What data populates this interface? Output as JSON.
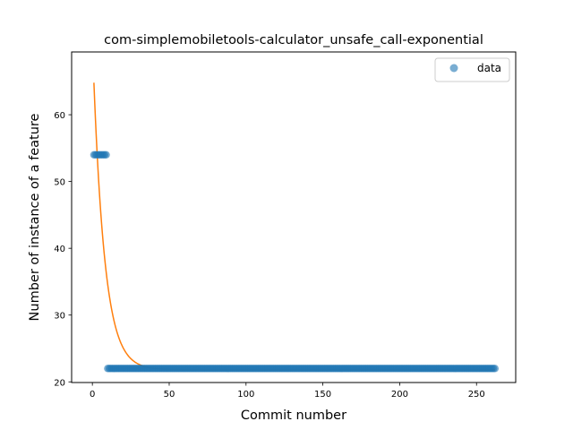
{
  "chart_data": {
    "type": "scatter",
    "title": "com-simplemobiletools-calculator_unsafe_call-exponential",
    "xlabel": "Commit number",
    "ylabel": "Number of instance of a feature",
    "xlim": [
      -13.5,
      275.5
    ],
    "ylim": [
      19.9,
      69.4
    ],
    "xticks": [
      0,
      50,
      100,
      150,
      200,
      250
    ],
    "yticks": [
      20,
      30,
      40,
      50,
      60
    ],
    "grid": false,
    "legend": {
      "position": "top-right",
      "entries": [
        "data"
      ]
    },
    "colors": {
      "data": "#1f77b4",
      "fit": "#ff7f0e"
    },
    "series": [
      {
        "name": "data",
        "kind": "scatter",
        "segments": [
          {
            "x_from": 1,
            "x_to": 9,
            "y": 54
          },
          {
            "x_from": 10,
            "x_to": 262,
            "y": 22
          }
        ]
      },
      {
        "kind": "line",
        "model": "exponential",
        "x_range": [
          1,
          262
        ],
        "y_start": 64.8,
        "asymptote": 21.8,
        "decay_rate": 0.135
      }
    ]
  }
}
